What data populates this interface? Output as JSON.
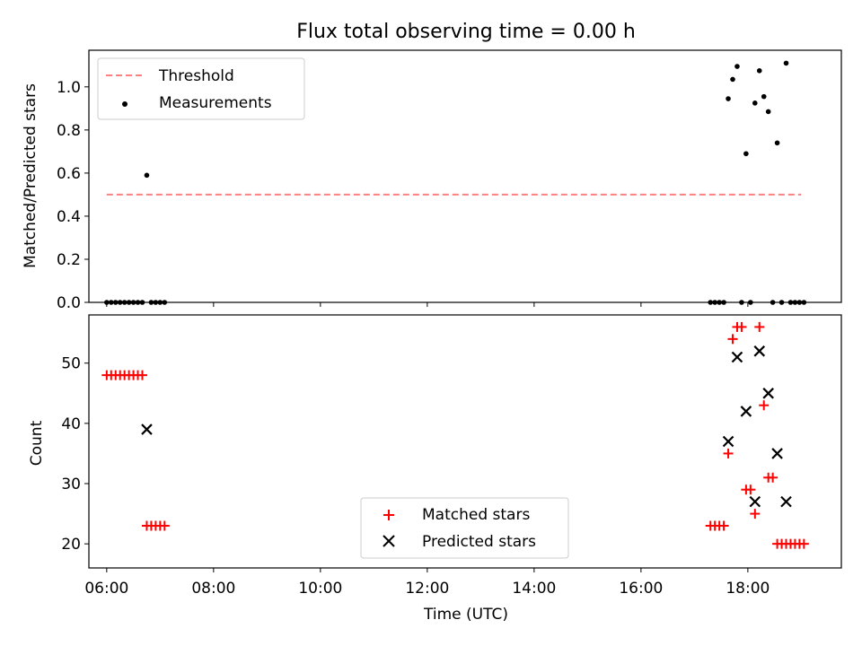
{
  "chart_data": [
    {
      "type": "scatter",
      "title": "Flux total observing time = 0.00 h",
      "xlabel": "",
      "ylabel": "Matched/Predicted stars",
      "xlim": [
        "05:40",
        "19:45"
      ],
      "ylim": [
        0,
        1.17
      ],
      "yticks": [
        0.0,
        0.2,
        0.4,
        0.6,
        0.8,
        1.0
      ],
      "ytick_labels": [
        "0.0",
        "0.2",
        "0.4",
        "0.6",
        "0.8",
        "1.0"
      ],
      "grid": false,
      "legend_position": "top-left",
      "colors": {
        "threshold": "#ff8080",
        "measurements": "#000000"
      },
      "series": [
        {
          "name": "Threshold",
          "kind": "dashed-line",
          "x": [
            "06:00",
            "19:00"
          ],
          "y": [
            0.5,
            0.5
          ]
        },
        {
          "name": "Measurements",
          "kind": "points",
          "x": [
            "06:00",
            "06:05",
            "06:10",
            "06:15",
            "06:20",
            "06:25",
            "06:30",
            "06:35",
            "06:40",
            "06:45",
            "06:50",
            "06:55",
            "07:00",
            "07:05",
            "17:18",
            "17:23",
            "17:28",
            "17:33",
            "17:38",
            "17:43",
            "17:48",
            "17:53",
            "17:58",
            "18:03",
            "18:08",
            "18:13",
            "18:18",
            "18:23",
            "18:28",
            "18:33",
            "18:38",
            "18:43",
            "18:48",
            "18:53",
            "18:58",
            "19:03"
          ],
          "y": [
            0,
            0,
            0,
            0,
            0,
            0,
            0,
            0,
            0,
            0.59,
            0,
            0,
            0,
            0,
            0,
            0,
            0,
            0,
            0.945,
            1.035,
            1.095,
            0,
            0.69,
            0,
            0.925,
            1.075,
            0.955,
            0.885,
            0,
            0.74,
            0,
            1.11,
            0,
            0,
            0,
            0
          ]
        }
      ]
    },
    {
      "type": "scatter",
      "title": "",
      "xlabel": "Time (UTC)",
      "ylabel": "Count",
      "xlim": [
        "05:40",
        "19:45"
      ],
      "ylim": [
        16,
        58
      ],
      "yticks": [
        20,
        30,
        40,
        50
      ],
      "ytick_labels": [
        "20",
        "30",
        "40",
        "50"
      ],
      "xticks": [
        "06:00",
        "08:00",
        "10:00",
        "12:00",
        "14:00",
        "16:00",
        "18:00"
      ],
      "xtick_labels": [
        "06:00",
        "08:00",
        "10:00",
        "12:00",
        "14:00",
        "16:00",
        "18:00"
      ],
      "grid": false,
      "legend_position": "bottom-center",
      "colors": {
        "matched": "#ff0000",
        "predicted": "#000000"
      },
      "series": [
        {
          "name": "Matched stars",
          "marker": "plus",
          "x": [
            "06:00",
            "06:05",
            "06:10",
            "06:15",
            "06:20",
            "06:25",
            "06:30",
            "06:35",
            "06:40",
            "06:45",
            "06:50",
            "06:55",
            "07:00",
            "07:05",
            "17:18",
            "17:23",
            "17:28",
            "17:33",
            "17:38",
            "17:43",
            "17:48",
            "17:53",
            "17:58",
            "18:03",
            "18:08",
            "18:13",
            "18:18",
            "18:23",
            "18:28",
            "18:33",
            "18:38",
            "18:43",
            "18:48",
            "18:53",
            "18:58",
            "19:03"
          ],
          "y": [
            48,
            48,
            48,
            48,
            48,
            48,
            48,
            48,
            48,
            23,
            23,
            23,
            23,
            23,
            23,
            23,
            23,
            23,
            35,
            54,
            56,
            56,
            29,
            29,
            25,
            56,
            43,
            31,
            31,
            20,
            20,
            20,
            20,
            20,
            20,
            20
          ]
        },
        {
          "name": "Predicted stars",
          "marker": "x",
          "x": [
            "06:45",
            "17:38",
            "17:48",
            "17:58",
            "18:08",
            "18:13",
            "18:23",
            "18:33",
            "18:43"
          ],
          "y": [
            39,
            37,
            51,
            42,
            27,
            52,
            45,
            35,
            27
          ]
        }
      ]
    }
  ]
}
